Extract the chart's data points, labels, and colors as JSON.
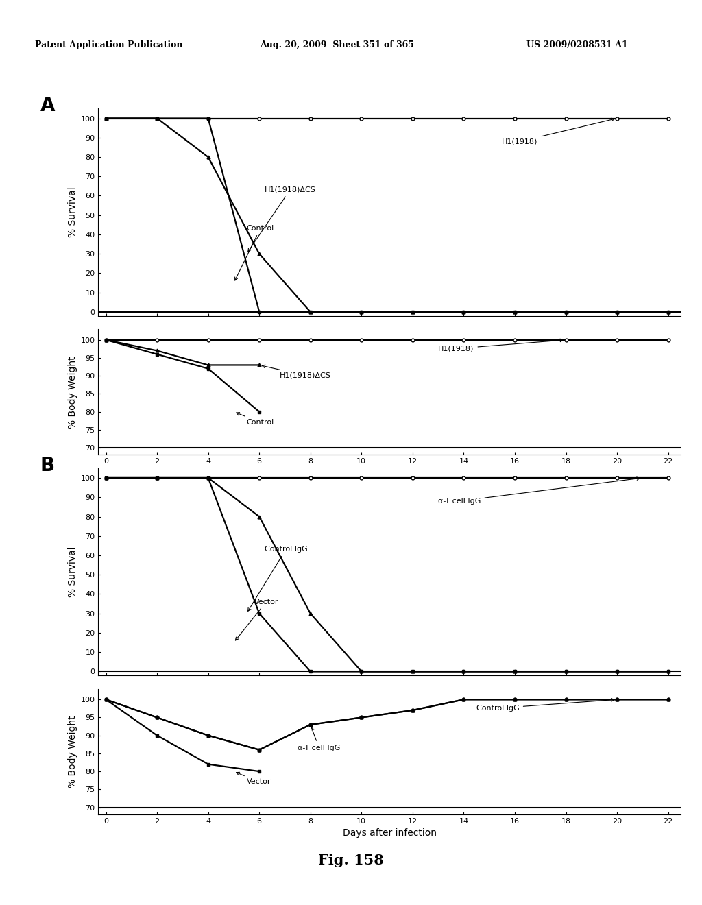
{
  "header_left": "Patent Application Publication",
  "header_center": "Aug. 20, 2009  Sheet 351 of 365",
  "header_right": "US 2009/0208531 A1",
  "fig_label": "Fig. 158",
  "xlabel": "Days after infection",
  "panel_A_survival": {
    "H1_1918": {
      "x": [
        0,
        2,
        4,
        6,
        8,
        10,
        12,
        14,
        16,
        18,
        20,
        22
      ],
      "y": [
        100,
        100,
        100,
        100,
        100,
        100,
        100,
        100,
        100,
        100,
        100,
        100
      ]
    },
    "H1_1918_DCS": {
      "x": [
        0,
        2,
        4,
        6,
        8,
        10,
        12,
        14,
        16,
        18,
        20,
        22
      ],
      "y": [
        100,
        100,
        80,
        30,
        0,
        0,
        0,
        0,
        0,
        0,
        0,
        0
      ]
    },
    "Control": {
      "x": [
        0,
        2,
        4,
        6,
        8,
        10,
        12,
        14,
        16,
        18,
        20,
        22
      ],
      "y": [
        100,
        100,
        100,
        0,
        0,
        0,
        0,
        0,
        0,
        0,
        0,
        0
      ]
    }
  },
  "panel_A_weight": {
    "H1_1918": {
      "x": [
        0,
        2,
        4,
        6,
        8,
        10,
        12,
        14,
        16,
        18,
        20,
        22
      ],
      "y": [
        100,
        100,
        100,
        100,
        100,
        100,
        100,
        100,
        100,
        100,
        100,
        100
      ]
    },
    "H1_1918_DCS": {
      "x": [
        0,
        2,
        4,
        6,
        8
      ],
      "y": [
        100,
        97,
        93,
        93,
        null
      ]
    },
    "Control": {
      "x": [
        0,
        2,
        4,
        6
      ],
      "y": [
        100,
        96,
        92,
        80
      ]
    }
  },
  "panel_B_survival": {
    "alpha_T_IgG": {
      "x": [
        0,
        2,
        4,
        6,
        8,
        10,
        12,
        14,
        16,
        18,
        20,
        22
      ],
      "y": [
        100,
        100,
        100,
        100,
        100,
        100,
        100,
        100,
        100,
        100,
        100,
        100
      ]
    },
    "Control_IgG": {
      "x": [
        0,
        2,
        4,
        6,
        8,
        10,
        12,
        14,
        16,
        18,
        20,
        22
      ],
      "y": [
        100,
        100,
        100,
        80,
        30,
        0,
        0,
        0,
        0,
        0,
        0,
        0
      ]
    },
    "Vector": {
      "x": [
        0,
        2,
        4,
        6,
        8,
        10,
        12,
        14,
        16,
        18,
        20,
        22
      ],
      "y": [
        100,
        100,
        100,
        30,
        0,
        0,
        0,
        0,
        0,
        0,
        0,
        0
      ]
    }
  },
  "panel_B_weight": {
    "Control_IgG": {
      "x": [
        0,
        2,
        4,
        6,
        8,
        10,
        12,
        14,
        16,
        18,
        20,
        22
      ],
      "y": [
        100,
        95,
        90,
        86,
        93,
        95,
        97,
        100,
        100,
        100,
        100,
        100
      ]
    },
    "alpha_T_IgG": {
      "x": [
        0,
        2,
        4,
        6,
        8,
        10,
        12,
        14,
        16,
        18,
        20,
        22
      ],
      "y": [
        100,
        95,
        90,
        86,
        93,
        95,
        97,
        100,
        100,
        100,
        100,
        100
      ]
    },
    "Vector": {
      "x": [
        0,
        2,
        4,
        6
      ],
      "y": [
        100,
        90,
        82,
        80
      ]
    }
  },
  "survival_yticks": [
    0,
    10,
    20,
    30,
    40,
    50,
    60,
    70,
    80,
    90,
    100
  ],
  "survival_ylim": [
    -2,
    105
  ],
  "weight_yticks": [
    70,
    75,
    80,
    85,
    90,
    95,
    100
  ],
  "weight_ylim": [
    68,
    103
  ],
  "xticks": [
    0,
    2,
    4,
    6,
    8,
    10,
    12,
    14,
    16,
    18,
    20,
    22
  ],
  "xlim": [
    -0.3,
    22.5
  ],
  "bg_color": "#ffffff",
  "panel_label_fontsize": 20,
  "axis_label_fontsize": 10,
  "tick_fontsize": 8,
  "annotation_fontsize": 8,
  "fig_label_fontsize": 15,
  "header_fontsize": 9
}
